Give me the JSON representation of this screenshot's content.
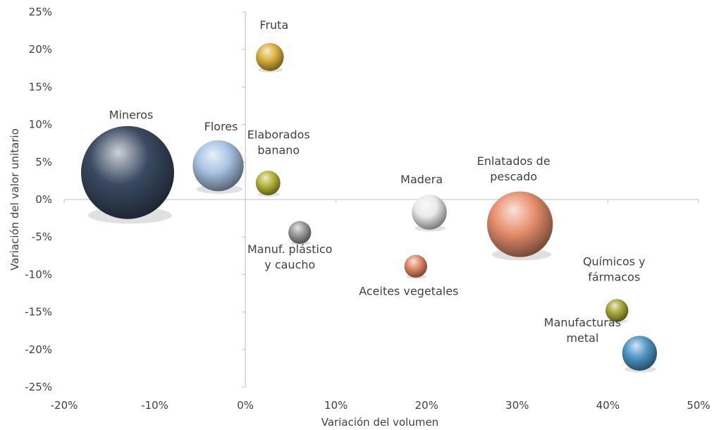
{
  "chart_data": {
    "type": "scatter",
    "subtype": "bubble",
    "title": "",
    "xlabel": "Variación del volumen",
    "ylabel": "Variación del valor unitario",
    "xlim": [
      -20,
      50
    ],
    "ylim": [
      -25,
      25
    ],
    "x_ticks": [
      "-20%",
      "-10%",
      "0%",
      "10%",
      "20%",
      "30%",
      "40%",
      "50%"
    ],
    "y_ticks": [
      "25%",
      "20%",
      "15%",
      "10%",
      "5%",
      "0%",
      "-5%",
      "-10%",
      "-15%",
      "-20%",
      "-25%"
    ],
    "grid": false,
    "legend": "none",
    "points": [
      {
        "label": "Mineros",
        "x": -13,
        "y": 3.6,
        "size": 100,
        "color": "#3a4a62"
      },
      {
        "label": "Flores",
        "x": -3,
        "y": 4.5,
        "size": 30,
        "color": "#a9c4e3"
      },
      {
        "label": "Fruta",
        "x": 2.7,
        "y": 19,
        "size": 9,
        "color": "#d9b23c"
      },
      {
        "label": "Elaborados banano",
        "x": 2.5,
        "y": 2.2,
        "size": 7,
        "color": "#b7b43a"
      },
      {
        "label": "Manuf. plástico y caucho",
        "x": 6,
        "y": -4.4,
        "size": 6,
        "color": "#9a9a9a"
      },
      {
        "label": "Madera",
        "x": 20.3,
        "y": -1.7,
        "size": 14,
        "color": "#e9e9e9"
      },
      {
        "label": "Aceites vegetales",
        "x": 18.8,
        "y": -8.9,
        "size": 6,
        "color": "#e08a66"
      },
      {
        "label": "Enlatados de pescado",
        "x": 30.3,
        "y": -3.3,
        "size": 50,
        "color": "#e8906e"
      },
      {
        "label": "Químicos y fármacos",
        "x": 41,
        "y": -14.8,
        "size": 6,
        "color": "#a6a83a"
      },
      {
        "label": "Manufacturas metal",
        "x": 43.5,
        "y": -20.5,
        "size": 14,
        "color": "#4f97c6"
      }
    ]
  }
}
